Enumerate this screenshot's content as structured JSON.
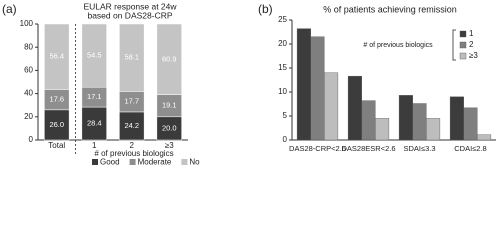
{
  "chart_data": [
    {
      "type": "stacked_bar",
      "panel_label": "(a)",
      "title": [
        "EULAR response at 24w",
        "based on DAS28-CRP"
      ],
      "xlabel": "# of previous biologics",
      "categories": [
        "Total",
        "1",
        "2",
        "≥3"
      ],
      "series": [
        {
          "name": "Good",
          "color": "#3a3a3a",
          "values": [
            26.0,
            28.4,
            24.2,
            20.0
          ],
          "value_labels": [
            "26.0",
            "28.4",
            "24.2",
            "20.0"
          ]
        },
        {
          "name": "Moderate",
          "color": "#8e8e8e",
          "values": [
            17.6,
            17.1,
            17.7,
            19.1
          ],
          "value_labels": [
            "17.6",
            "17.1",
            "17.7",
            "19.1"
          ]
        },
        {
          "name": "No",
          "color": "#c4c4c4",
          "values": [
            56.4,
            54.5,
            58.1,
            60.9
          ],
          "value_labels": [
            "56.4",
            "54.5",
            "58.1",
            "60.9"
          ]
        }
      ],
      "ylim": [
        0,
        100
      ],
      "yticks": [
        0,
        20,
        40,
        60,
        80,
        100
      ],
      "legend": "bottom"
    },
    {
      "type": "grouped_bar",
      "panel_label": "(b)",
      "title": "% of patients achieving remission",
      "legend_title": "# of previous biologics",
      "categories": [
        "DAS28-CRP<2.6",
        "DAS28ESR<2.6",
        "SDAI≤3.3",
        "CDAI≤2.8"
      ],
      "series": [
        {
          "name": "1",
          "color": "#3c3c3c",
          "values": [
            23.2,
            13.3,
            9.3,
            9.0
          ]
        },
        {
          "name": "2",
          "color": "#7f7f7f",
          "values": [
            21.5,
            8.2,
            7.6,
            6.7
          ]
        },
        {
          "name": "≥3",
          "color": "#bdbdbd",
          "values": [
            14.0,
            4.5,
            4.5,
            1.1
          ]
        }
      ],
      "ylim": [
        0,
        25
      ],
      "yticks": [
        0,
        5,
        10,
        15,
        20,
        25
      ],
      "legend": "upper right"
    }
  ]
}
